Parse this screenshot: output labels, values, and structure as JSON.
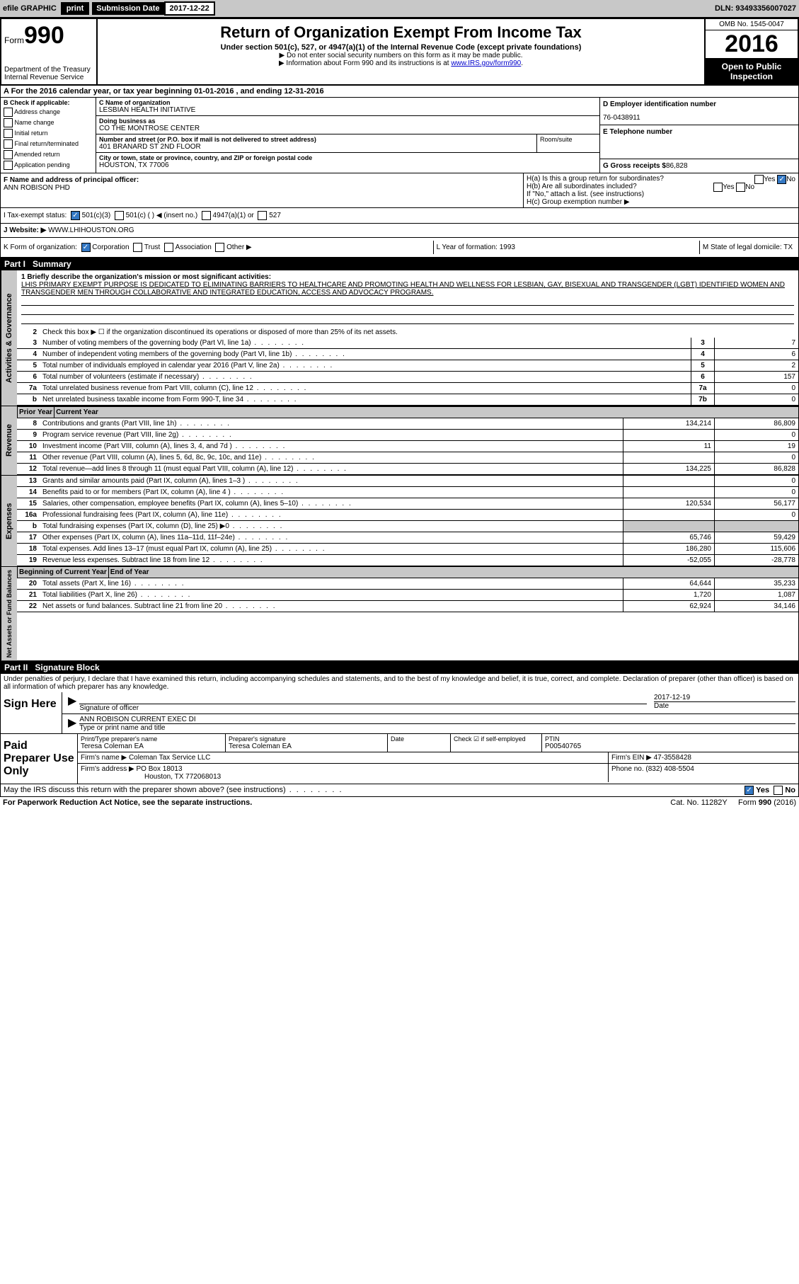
{
  "topbar": {
    "efile": "efile GRAPHIC",
    "print": "print",
    "submission_label": "Submission Date",
    "submission_date": "2017-12-22",
    "dln": "DLN: 93493356007027"
  },
  "header": {
    "form": "Form",
    "form_num": "990",
    "dept": "Department of the Treasury",
    "irs": "Internal Revenue Service",
    "title": "Return of Organization Exempt From Income Tax",
    "subtitle": "Under section 501(c), 527, or 4947(a)(1) of the Internal Revenue Code (except private foundations)",
    "note1": "▶ Do not enter social security numbers on this form as it may be made public.",
    "note2": "▶ Information about Form 990 and its instructions is at ",
    "note2_link": "www.IRS.gov/form990",
    "omb": "OMB No. 1545-0047",
    "year": "2016",
    "open": "Open to Public Inspection"
  },
  "row_a": "A For the 2016 calendar year, or tax year beginning 01-01-2016    , and ending 12-31-2016",
  "col_b": {
    "title": "B Check if applicable:",
    "addr": "Address change",
    "name": "Name change",
    "init": "Initial return",
    "final": "Final return/terminated",
    "amend": "Amended return",
    "app": "Application pending"
  },
  "col_c": {
    "name_label": "C Name of organization",
    "name": "LESBIAN HEALTH INITIATIVE",
    "dba_label": "Doing business as",
    "dba": "CO THE MONTROSE CENTER",
    "addr_label": "Number and street (or P.O. box if mail is not delivered to street address)",
    "addr": "401 BRANARD ST 2ND FLOOR",
    "room_label": "Room/suite",
    "city_label": "City or town, state or province, country, and ZIP or foreign postal code",
    "city": "HOUSTON, TX  77006"
  },
  "col_de": {
    "d_label": "D Employer identification number",
    "d": "76-0438911",
    "e_label": "E Telephone number",
    "g_label": "G Gross receipts $",
    "g": "86,828"
  },
  "row_f": {
    "label": "F Name and address of principal officer:",
    "name": "ANN ROBISON PHD"
  },
  "row_h": {
    "ha": "H(a)  Is this a group return for subordinates?",
    "hb": "H(b)  Are all subordinates included?",
    "hb_note": "If \"No,\" attach a list. (see instructions)",
    "hc": "H(c)  Group exemption number ▶",
    "yes": "Yes",
    "no": "No"
  },
  "tax_exempt": {
    "label": "I   Tax-exempt status:",
    "c3": "501(c)(3)",
    "c": "501(c) (  ) ◀ (insert no.)",
    "a1": "4947(a)(1) or",
    "s527": "527"
  },
  "website": {
    "label": "J   Website: ▶",
    "url": "WWW.LHIHOUSTON.ORG"
  },
  "kform": {
    "label": "K Form of organization:",
    "corp": "Corporation",
    "trust": "Trust",
    "assoc": "Association",
    "other": "Other ▶",
    "l": "L Year of formation: 1993",
    "m": "M State of legal domicile: TX"
  },
  "part1": {
    "header": "Part I",
    "title": "Summary"
  },
  "summary": {
    "l1_label": "1  Briefly describe the organization's mission or most significant activities:",
    "l1_text": "LHIS PRIMARY EXEMPT PURPOSE IS DEDICATED TO ELIMINATING BARRIERS TO HEALTHCARE AND PROMOTING HEALTH AND WELLNESS FOR LESBIAN, GAY, BISEXUAL AND TRANSGENDER (LGBT) IDENTIFIED WOMEN AND TRANSGENDER MEN THROUGH COLLABORATIVE AND INTEGRATED EDUCATION, ACCESS AND ADVOCACY PROGRAMS.",
    "l2": "Check this box ▶ ☐  if the organization discontinued its operations or disposed of more than 25% of its net assets.",
    "lines_gov": [
      {
        "n": "3",
        "d": "Number of voting members of the governing body (Part VI, line 1a)",
        "b": "3",
        "v": "7"
      },
      {
        "n": "4",
        "d": "Number of independent voting members of the governing body (Part VI, line 1b)",
        "b": "4",
        "v": "6"
      },
      {
        "n": "5",
        "d": "Total number of individuals employed in calendar year 2016 (Part V, line 2a)",
        "b": "5",
        "v": "2"
      },
      {
        "n": "6",
        "d": "Total number of volunteers (estimate if necessary)",
        "b": "6",
        "v": "157"
      },
      {
        "n": "7a",
        "d": "Total unrelated business revenue from Part VIII, column (C), line 12",
        "b": "7a",
        "v": "0"
      },
      {
        "n": "b",
        "d": "Net unrelated business taxable income from Form 990-T, line 34",
        "b": "7b",
        "v": "0"
      }
    ],
    "hdr_prior": "Prior Year",
    "hdr_curr": "Current Year",
    "lines_rev": [
      {
        "n": "8",
        "d": "Contributions and grants (Part VIII, line 1h)",
        "p": "134,214",
        "c": "86,809"
      },
      {
        "n": "9",
        "d": "Program service revenue (Part VIII, line 2g)",
        "p": "",
        "c": "0"
      },
      {
        "n": "10",
        "d": "Investment income (Part VIII, column (A), lines 3, 4, and 7d )",
        "p": "11",
        "c": "19"
      },
      {
        "n": "11",
        "d": "Other revenue (Part VIII, column (A), lines 5, 6d, 8c, 9c, 10c, and 11e)",
        "p": "",
        "c": "0"
      },
      {
        "n": "12",
        "d": "Total revenue—add lines 8 through 11 (must equal Part VIII, column (A), line 12)",
        "p": "134,225",
        "c": "86,828"
      }
    ],
    "lines_exp": [
      {
        "n": "13",
        "d": "Grants and similar amounts paid (Part IX, column (A), lines 1–3 )",
        "p": "",
        "c": "0"
      },
      {
        "n": "14",
        "d": "Benefits paid to or for members (Part IX, column (A), line 4 )",
        "p": "",
        "c": "0"
      },
      {
        "n": "15",
        "d": "Salaries, other compensation, employee benefits (Part IX, column (A), lines 5–10)",
        "p": "120,534",
        "c": "56,177"
      },
      {
        "n": "16a",
        "d": "Professional fundraising fees (Part IX, column (A), line 11e)",
        "p": "",
        "c": "0"
      },
      {
        "n": "b",
        "d": "Total fundraising expenses (Part IX, column (D), line 25) ▶0",
        "p": "shade",
        "c": "shade"
      },
      {
        "n": "17",
        "d": "Other expenses (Part IX, column (A), lines 11a–11d, 11f–24e)",
        "p": "65,746",
        "c": "59,429"
      },
      {
        "n": "18",
        "d": "Total expenses. Add lines 13–17 (must equal Part IX, column (A), line 25)",
        "p": "186,280",
        "c": "115,606"
      },
      {
        "n": "19",
        "d": "Revenue less expenses. Subtract line 18 from line 12",
        "p": "-52,055",
        "c": "-28,778"
      }
    ],
    "hdr_boy": "Beginning of Current Year",
    "hdr_eoy": "End of Year",
    "lines_net": [
      {
        "n": "20",
        "d": "Total assets (Part X, line 16)",
        "p": "64,644",
        "c": "35,233"
      },
      {
        "n": "21",
        "d": "Total liabilities (Part X, line 26)",
        "p": "1,720",
        "c": "1,087"
      },
      {
        "n": "22",
        "d": "Net assets or fund balances. Subtract line 21 from line 20",
        "p": "62,924",
        "c": "34,146"
      }
    ]
  },
  "side_labels": {
    "gov": "Activities & Governance",
    "rev": "Revenue",
    "exp": "Expenses",
    "net": "Net Assets or Fund Balances"
  },
  "part2": {
    "header": "Part II",
    "title": "Signature Block"
  },
  "sig": {
    "perjury": "Under penalties of perjury, I declare that I have examined this return, including accompanying schedules and statements, and to the best of my knowledge and belief, it is true, correct, and complete. Declaration of preparer (other than officer) is based on all information of which preparer has any knowledge.",
    "sign_here": "Sign Here",
    "sig_officer": "Signature of officer",
    "date": "Date",
    "sig_date": "2017-12-19",
    "name": "ANN ROBISON  CURRENT EXEC DI",
    "name_label": "Type or print name and title"
  },
  "paid": {
    "title": "Paid Preparer Use Only",
    "pt_label": "Print/Type preparer's name",
    "pt_name": "Teresa Coleman EA",
    "ps_label": "Preparer's signature",
    "ps_name": "Teresa Coleman EA",
    "date_label": "Date",
    "check_label": "Check ☑ if self-employed",
    "ptin_label": "PTIN",
    "ptin": "P00540765",
    "firm_name_label": "Firm's name    ▶",
    "firm_name": "Coleman Tax Service LLC",
    "firm_ein_label": "Firm's EIN ▶",
    "firm_ein": "47-3558428",
    "firm_addr_label": "Firm's address ▶",
    "firm_addr": "PO Box 18013",
    "firm_city": "Houston, TX  772068013",
    "phone_label": "Phone no.",
    "phone": "(832) 408-5504"
  },
  "discuss": "May the IRS discuss this return with the preparer shown above? (see instructions)",
  "footer": {
    "pra": "For Paperwork Reduction Act Notice, see the separate instructions.",
    "cat": "Cat. No. 11282Y",
    "form": "Form 990 (2016)"
  },
  "colors": {
    "header_bg": "#c8c8c8",
    "black": "#000000",
    "blue_check": "#3478c4",
    "link": "#0000cc"
  }
}
